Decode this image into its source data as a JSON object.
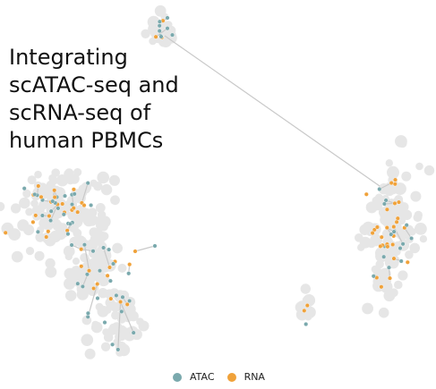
{
  "chart_data": {
    "type": "scatter",
    "title_lines": [
      "Integrating",
      "scATAC-seq and",
      "scRNA-seq of",
      "human PBMCs"
    ],
    "xlabel": "",
    "ylabel": "",
    "grid": false,
    "legend_position": "bottom-center",
    "background_cloud_color": "#e6e6e6",
    "link_color": "#c9c9c9",
    "series": [
      {
        "name": "ATAC",
        "color": "#7aa9ad"
      },
      {
        "name": "RNA",
        "color": "#f0a23a"
      }
    ]
  }
}
